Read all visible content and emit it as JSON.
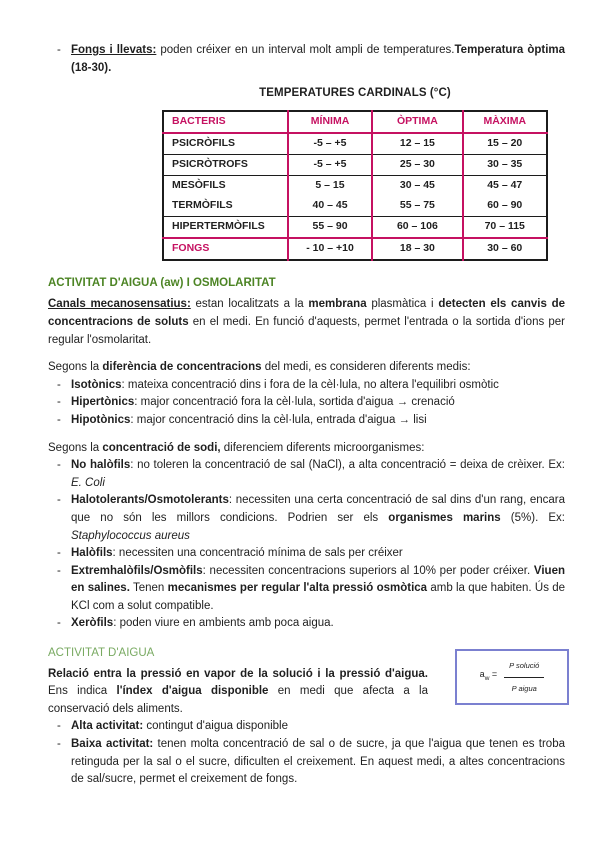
{
  "colors": {
    "heading_green_dark": "#4c8424",
    "heading_green_light": "#79aa62",
    "table_pink": "#c51161",
    "table_border_black": "#1c1c1c",
    "formula_box_border": "#7b80d0"
  },
  "marker": "-",
  "intro": {
    "bullet": [
      {
        "t": "Fongs i llevats:",
        "b": true,
        "u": true
      },
      {
        "t": " poden créixer en un interval molt ampli de temperatures."
      },
      {
        "t": "Temperatura òptima (18-30).",
        "b": true
      }
    ]
  },
  "table_section": {
    "title": "TEMPERATURES CARDINALS (°C)",
    "headers": [
      "BACTERIS",
      "MÍNIMA",
      "ÒPTIMA",
      "MÀXIMA"
    ],
    "rows": [
      {
        "name": "PSICRÒFILS",
        "min": "-5 – +5",
        "opt": "12 – 15",
        "max": "15 – 20"
      },
      {
        "name": "PSICRÒTROFS",
        "min": "-5 – +5",
        "opt": "25 – 30",
        "max": "30 – 35"
      },
      {
        "name": "MESÒFILS",
        "min": "5 – 15",
        "opt": "30 – 45",
        "max": "45 – 47"
      },
      {
        "name": "TERMÒFILS",
        "min": "40 – 45",
        "opt": "55 – 75",
        "max": "60 – 90"
      },
      {
        "name": "HIPERTERMÒFILS",
        "min": "55 – 90",
        "opt": "60 – 106",
        "max": "70 – 115"
      },
      {
        "name": "FONGS",
        "min": "- 10 – +10",
        "opt": "18 – 30",
        "max": "30 – 60"
      }
    ]
  },
  "osmolarity": {
    "heading": "ACTIVITAT D'AIGUA (aw) I OSMOLARITAT",
    "canals": [
      {
        "t": "Canals mecanosensatius:",
        "b": true,
        "u": true
      },
      {
        "t": " estan localitzats a la "
      },
      {
        "t": "membrana",
        "b": true
      },
      {
        "t": " plasmàtica i "
      },
      {
        "t": "detecten els canvis de concentracions de soluts",
        "b": true
      },
      {
        "t": " en el medi. En funció d'aquests, permet l'entrada o la sortida d'ions per regular l'osmolaritat."
      }
    ],
    "media_lead": [
      {
        "t": "Segons la "
      },
      {
        "t": "diferència de concentracions",
        "b": true
      },
      {
        "t": " del medi, es consideren diferents medis:"
      }
    ],
    "media_bullets": [
      [
        {
          "t": "Isotònics",
          "b": true
        },
        {
          "t": ": mateixa concentració dins i fora de la cèl·lula, no altera l'equilibri osmòtic"
        }
      ],
      [
        {
          "t": "Hipertònics",
          "b": true
        },
        {
          "t": ": major concentració fora la cèl·lula, sortida d'aigua → crenació"
        }
      ],
      [
        {
          "t": "Hipotònics",
          "b": true
        },
        {
          "t": ": major concentració dins la cèl·lula, entrada d'aigua → lisi"
        }
      ]
    ],
    "sodium_lead": [
      {
        "t": "Segons la "
      },
      {
        "t": "concentració de sodi,",
        "b": true
      },
      {
        "t": " diferenciem diferents microorganismes:"
      }
    ],
    "sodium_bullets": [
      [
        {
          "t": "No halòfils",
          "b": true
        },
        {
          "t": ": no toleren la concentració de sal (NaCl), a alta concentració = deixa de crèixer. Ex: "
        },
        {
          "t": "E. Coli",
          "i": true
        }
      ],
      [
        {
          "t": "Halotolerants/Osmotolerants",
          "b": true
        },
        {
          "t": ": necessiten una certa concentració de sal dins d'un rang, encara que no són les millors condicions. Podrien ser els "
        },
        {
          "t": "organismes marins",
          "b": true
        },
        {
          "t": " (5%). Ex: "
        },
        {
          "t": "Staphylococcus aureus",
          "i": true
        }
      ],
      [
        {
          "t": "Halòfils",
          "b": true
        },
        {
          "t": ": necessiten una concentració mínima de sals per créixer"
        }
      ],
      [
        {
          "t": "Extremhalòfils/Osmòfils",
          "b": true
        },
        {
          "t": ": necessiten concentracions superiors al 10% per poder créixer. "
        },
        {
          "t": "Viuen en salines.",
          "b": true
        },
        {
          "t": " Tenen "
        },
        {
          "t": "mecanismes per regular l'alta pressió osmòtica",
          "b": true
        },
        {
          "t": " amb la que habiten. Ús de KCl com a solut compatible."
        }
      ],
      [
        {
          "t": "Xeròfils",
          "b": true
        },
        {
          "t": ": poden viure en ambients amb poca aigua."
        }
      ]
    ]
  },
  "water_activity": {
    "heading": "ACTIVITAT D'AIGUA",
    "paragraph": [
      {
        "t": "Relació entra la pressió en vapor de la solució i la pressió d'aigua.",
        "b": true
      },
      {
        "t": " Ens indica "
      },
      {
        "t": "l'índex d'aigua disponible",
        "b": true
      },
      {
        "t": " en medi que afecta a la conservació dels aliments."
      }
    ],
    "formula": {
      "lhs": "a",
      "sub": "w",
      "eq": "=",
      "numerator": "P solució",
      "denominator": "P aigua"
    },
    "bullets": [
      [
        {
          "t": "Alta activitat:",
          "b": true
        },
        {
          "t": " contingut d'aigua disponible"
        }
      ],
      [
        {
          "t": "Baixa activitat:",
          "b": true
        },
        {
          "t": " tenen molta concentració de sal o de sucre, ja que l'aigua que tenen es troba retinguda per la sal o el sucre, dificulten el creixement. En aquest medi, a altes concentracions de sal/sucre, permet el creixement de fongs."
        }
      ]
    ]
  }
}
